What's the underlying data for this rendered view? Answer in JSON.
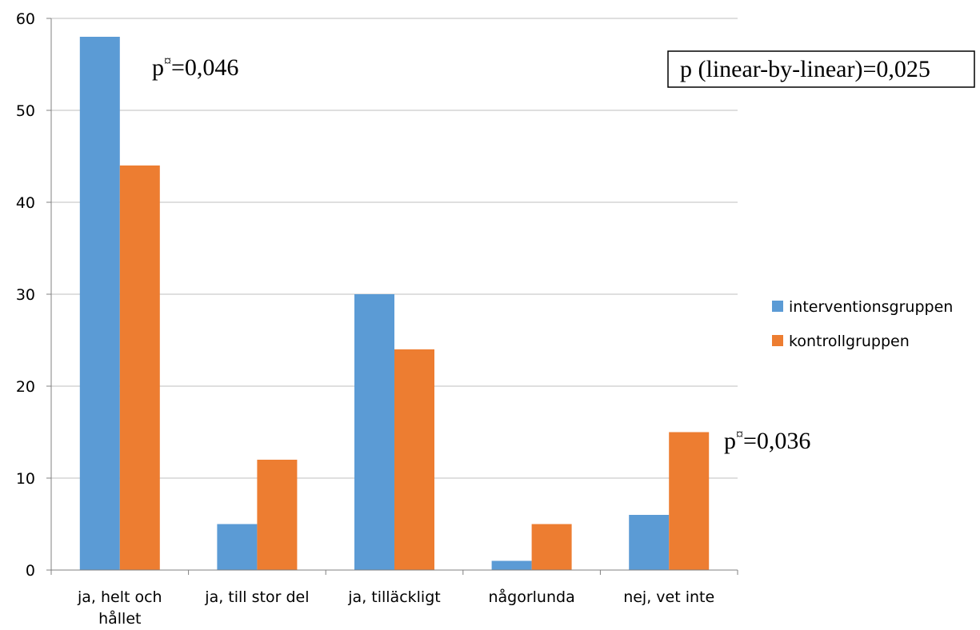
{
  "chart_data": {
    "type": "bar",
    "categories": [
      [
        "ja, helt och",
        "hållet"
      ],
      [
        "ja, till stor del"
      ],
      [
        "ja, tilläckligt"
      ],
      [
        "någorlunda"
      ],
      [
        "nej, vet inte"
      ]
    ],
    "series": [
      {
        "name": "interventionsgruppen",
        "color": "#5B9BD5",
        "values": [
          58,
          5,
          30,
          1,
          6
        ]
      },
      {
        "name": "kontrollgruppen",
        "color": "#ED7D31",
        "values": [
          44,
          12,
          24,
          5,
          15
        ]
      }
    ],
    "ylim": [
      0,
      60
    ],
    "yticks": [
      0,
      10,
      20,
      30,
      40,
      50,
      60
    ],
    "grid": true,
    "legend": "right",
    "annotations": [
      {
        "id": "anno-1",
        "base": "p",
        "sup": "¤",
        "rest": "=0,046"
      },
      {
        "id": "anno-2",
        "base": "p",
        "sup": "¤",
        "rest": "=0,036"
      }
    ],
    "boxed_annotation": "p (linear-by-linear)=0,025"
  }
}
